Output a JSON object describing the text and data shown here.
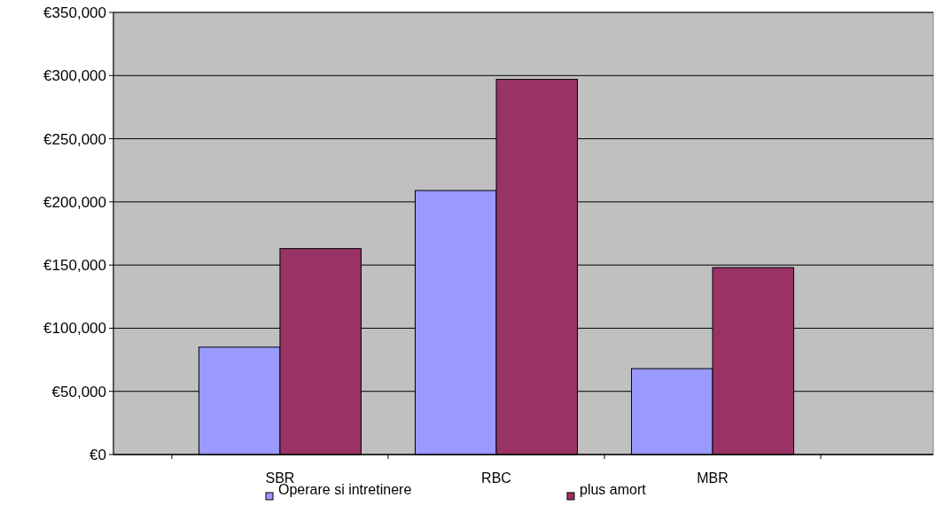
{
  "chart_data": {
    "type": "bar",
    "categories": [
      "SBR",
      "RBC",
      "MBR"
    ],
    "series": [
      {
        "name": "Operare si intretinere",
        "color": "#9999ff",
        "values": [
          85000,
          209000,
          68000
        ]
      },
      {
        "name": "plus amort",
        "color": "#993366",
        "values": [
          163000,
          297000,
          148000
        ]
      }
    ],
    "ylim": [
      0,
      350000
    ],
    "yticks": [
      {
        "value": 0,
        "label": "€0"
      },
      {
        "value": 50000,
        "label": "€50,000"
      },
      {
        "value": 100000,
        "label": "€100,000"
      },
      {
        "value": 150000,
        "label": "€150,000"
      },
      {
        "value": 200000,
        "label": "€200,000"
      },
      {
        "value": 250000,
        "label": "€250,000"
      },
      {
        "value": 300000,
        "label": "€300,000"
      },
      {
        "value": 350000,
        "label": "€350,000"
      }
    ],
    "grid": "y",
    "legend": "bottom"
  }
}
